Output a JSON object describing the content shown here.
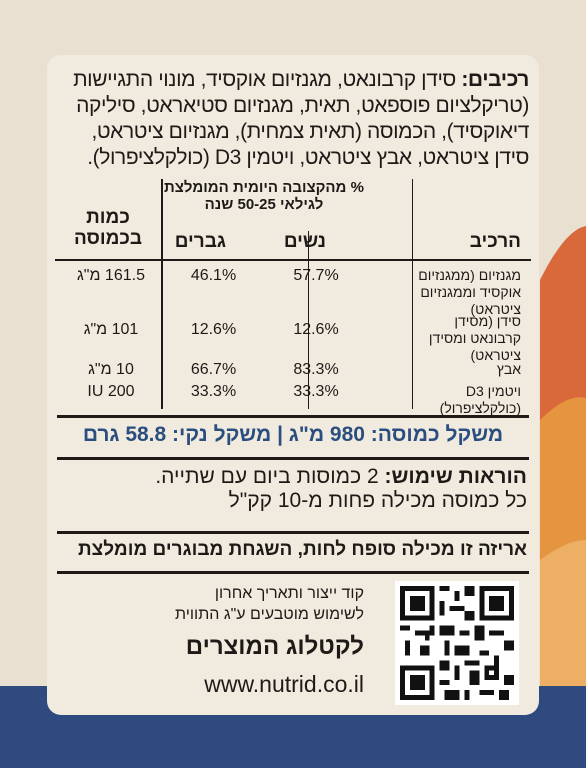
{
  "ingredients": {
    "label": "רכיבים:",
    "text": "סידן קרבונאט, מגנזיום אוקסיד, מונוי התגיישות (טריקלציום פוספאט, תאית, מגנזיום סטיאראט, סיליקה דיאוקסיד), הכמוסה (תאית צמחית), מגנזיום ציטראט, סידן ציטראט, אבץ ציטראט, ויטמין D3 (כולקלציפרול)."
  },
  "table": {
    "header_pct": "% מהקצובה היומית המומלצת לגילאי 50-25 שנה",
    "header_name": "הרכיב",
    "header_women": "נשים",
    "header_men": "גברים",
    "header_amount": "כמות בכמוסה",
    "rows": [
      {
        "name": "מגנזיום (ממגנזיום אוקסיד וממגנזיום ציטראט)",
        "women": "57.7%",
        "men": "46.1%",
        "amount": "161.5 מ\"ג"
      },
      {
        "name": "סידן (מסידן קרבונאט ומסידן ציטראט)",
        "women": "12.6%",
        "men": "12.6%",
        "amount": "101 מ\"ג"
      },
      {
        "name": "אבץ",
        "women": "83.3%",
        "men": "66.7%",
        "amount": "10 מ\"ג"
      },
      {
        "name": "ויטמין D3 (כולקלציפרול)",
        "women": "33.3%",
        "men": "33.3%",
        "amount": "200 IU"
      }
    ]
  },
  "weight": "משקל כמוסה: 980 מ\"ג | משקל נקי: 58.8 גרם",
  "usage": {
    "label": "הוראות שימוש:",
    "line1": "2 כמוסות ביום עם שתייה.",
    "line2": "כל כמוסה מכילה פחות מ-10 קק\"ל"
  },
  "warning": "אריזה זו מכילה סופח לחות, השגחת מבוגרים מומלצת",
  "production_note": "קוד ייצור ותאריך אחרון לשימוש מוטבעים ע\"ג התווית",
  "catalog": "לקטלוג המוצרים",
  "url": "www.nutrid.co.il",
  "colors": {
    "navy": "#2f4a7e",
    "orange": "#d9683a",
    "amber": "#e59a45",
    "text_blue": "#2a4e7f"
  }
}
